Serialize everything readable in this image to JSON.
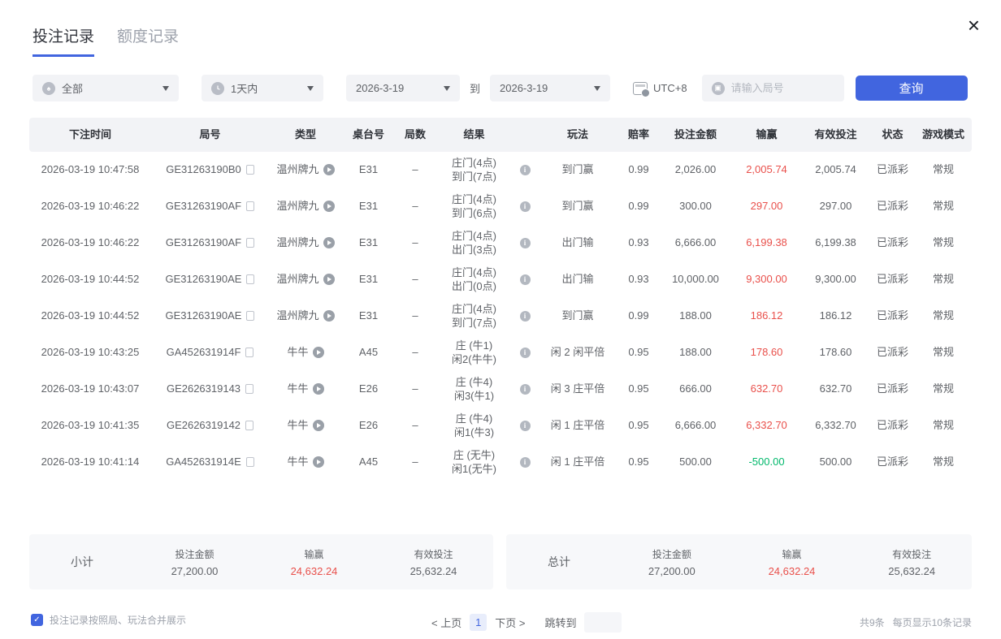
{
  "tabs": {
    "bet_records": "投注记录",
    "quota_records": "额度记录"
  },
  "close_label": "×",
  "filters": {
    "game_type": "全部",
    "time_range": "1天内",
    "date_from": "2026-3-19",
    "to_label": "到",
    "date_to": "2026-3-19",
    "timezone": "UTC+8",
    "round_placeholder": "请输入局号",
    "search_button": "查询"
  },
  "table": {
    "headers": [
      "下注时间",
      "局号",
      "类型",
      "桌台号",
      "局数",
      "结果",
      "玩法",
      "赔率",
      "投注金额",
      "输赢",
      "有效投注",
      "状态",
      "游戏模式"
    ],
    "rows": [
      {
        "time": "2026-03-19 10:47:58",
        "round_id": "GE31263190B0",
        "type": "温州牌九",
        "table_no": "E31",
        "rounds": "–",
        "result": [
          "庄门(4点)",
          "到门(7点)"
        ],
        "play": "到门赢",
        "odds": "0.99",
        "bet": "2,026.00",
        "win": "2,005.74",
        "valid": "2,005.74",
        "status": "已派彩",
        "mode": "常规"
      },
      {
        "time": "2026-03-19 10:46:22",
        "round_id": "GE31263190AF",
        "type": "温州牌九",
        "table_no": "E31",
        "rounds": "–",
        "result": [
          "庄门(4点)",
          "到门(6点)"
        ],
        "play": "到门赢",
        "odds": "0.99",
        "bet": "300.00",
        "win": "297.00",
        "valid": "297.00",
        "status": "已派彩",
        "mode": "常规"
      },
      {
        "time": "2026-03-19 10:46:22",
        "round_id": "GE31263190AF",
        "type": "温州牌九",
        "table_no": "E31",
        "rounds": "–",
        "result": [
          "庄门(4点)",
          "出门(3点)"
        ],
        "play": "出门输",
        "odds": "0.93",
        "bet": "6,666.00",
        "win": "6,199.38",
        "valid": "6,199.38",
        "status": "已派彩",
        "mode": "常规"
      },
      {
        "time": "2026-03-19 10:44:52",
        "round_id": "GE31263190AE",
        "type": "温州牌九",
        "table_no": "E31",
        "rounds": "–",
        "result": [
          "庄门(4点)",
          "出门(0点)"
        ],
        "play": "出门输",
        "odds": "0.93",
        "bet": "10,000.00",
        "win": "9,300.00",
        "valid": "9,300.00",
        "status": "已派彩",
        "mode": "常规"
      },
      {
        "time": "2026-03-19 10:44:52",
        "round_id": "GE31263190AE",
        "type": "温州牌九",
        "table_no": "E31",
        "rounds": "–",
        "result": [
          "庄门(4点)",
          "到门(7点)"
        ],
        "play": "到门赢",
        "odds": "0.99",
        "bet": "188.00",
        "win": "186.12",
        "valid": "186.12",
        "status": "已派彩",
        "mode": "常规"
      },
      {
        "time": "2026-03-19 10:43:25",
        "round_id": "GA452631914F",
        "type": "牛牛",
        "table_no": "A45",
        "rounds": "–",
        "result": [
          "庄 (牛1)",
          "闲2(牛牛)"
        ],
        "play": "闲 2 闲平倍",
        "odds": "0.95",
        "bet": "188.00",
        "win": "178.60",
        "valid": "178.60",
        "status": "已派彩",
        "mode": "常规"
      },
      {
        "time": "2026-03-19 10:43:07",
        "round_id": "GE2626319143",
        "type": "牛牛",
        "table_no": "E26",
        "rounds": "–",
        "result": [
          "庄 (牛4)",
          "闲3(牛1)"
        ],
        "play": "闲 3 庄平倍",
        "odds": "0.95",
        "bet": "666.00",
        "win": "632.70",
        "valid": "632.70",
        "status": "已派彩",
        "mode": "常规"
      },
      {
        "time": "2026-03-19 10:41:35",
        "round_id": "GE2626319142",
        "type": "牛牛",
        "table_no": "E26",
        "rounds": "–",
        "result": [
          "庄 (牛4)",
          "闲1(牛3)"
        ],
        "play": "闲 1 庄平倍",
        "odds": "0.95",
        "bet": "6,666.00",
        "win": "6,332.70",
        "valid": "6,332.70",
        "status": "已派彩",
        "mode": "常规"
      },
      {
        "time": "2026-03-19 10:41:14",
        "round_id": "GA452631914E",
        "type": "牛牛",
        "table_no": "A45",
        "rounds": "–",
        "result": [
          "庄 (无牛)",
          "闲1(无牛)"
        ],
        "play": "闲 1 庄平倍",
        "odds": "0.95",
        "bet": "500.00",
        "win": "-500.00",
        "valid": "500.00",
        "status": "已派彩",
        "mode": "常规"
      }
    ]
  },
  "summary": {
    "subtotal": {
      "label": "小计",
      "bet_label": "投注金额",
      "bet": "27,200.00",
      "win_label": "输赢",
      "win": "24,632.24",
      "valid_label": "有效投注",
      "valid": "25,632.24"
    },
    "total": {
      "label": "总计",
      "bet_label": "投注金额",
      "bet": "27,200.00",
      "win_label": "输赢",
      "win": "24,632.24",
      "valid_label": "有效投注",
      "valid": "25,632.24"
    }
  },
  "footer": {
    "merge_label": "投注记录按照局、玩法合并展示",
    "merge_checked": true,
    "pagination": {
      "prev": "< 上页",
      "current": "1",
      "next": "下页 >",
      "jump_label": "跳转到"
    },
    "total_count": "共9条",
    "page_size": "每页显示10条记录"
  },
  "colors": {
    "accent": "#4165df",
    "win_red": "#e9504b",
    "loss_green": "#00b86b",
    "header_bg": "#f2f3f6"
  }
}
